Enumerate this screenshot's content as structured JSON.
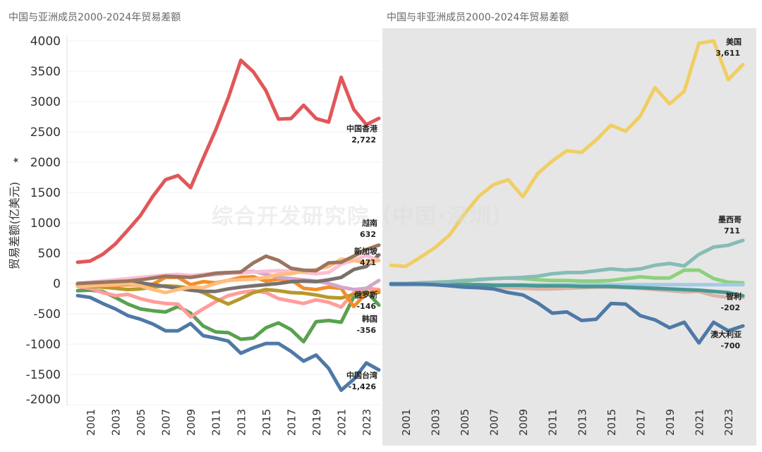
{
  "chart_data": [
    {
      "type": "line",
      "title": "中国与亚洲成员2000-2024年贸易差额",
      "ylabel": "贸易差额(亿美元)",
      "ylim": [
        -2000,
        4000
      ],
      "yticks": [
        4000,
        3500,
        3000,
        2500,
        2000,
        1500,
        1000,
        500,
        0,
        -500,
        -1000,
        -1500,
        -2000
      ],
      "x": [
        2000,
        2001,
        2002,
        2003,
        2004,
        2005,
        2006,
        2007,
        2008,
        2009,
        2010,
        2011,
        2012,
        2013,
        2014,
        2015,
        2016,
        2017,
        2018,
        2019,
        2020,
        2021,
        2022,
        2023,
        2024
      ],
      "xticks": [
        2001,
        2003,
        2005,
        2007,
        2009,
        2011,
        2013,
        2015,
        2017,
        2019,
        2021,
        2023
      ],
      "grid": true,
      "series": [
        {
          "name": "中国香港",
          "end_label": "2,722",
          "color": "#e15759",
          "values": [
            350,
            370,
            480,
            650,
            880,
            1120,
            1440,
            1710,
            1780,
            1580,
            2060,
            2530,
            3060,
            3680,
            3490,
            3180,
            2710,
            2720,
            2940,
            2720,
            2660,
            3400,
            2870,
            2620,
            2722
          ]
        },
        {
          "name": "中国台湾",
          "end_label": "-1,426",
          "color": "#4e79a7",
          "values": [
            -200,
            -230,
            -330,
            -420,
            -530,
            -590,
            -670,
            -780,
            -780,
            -660,
            -860,
            -900,
            -950,
            -1150,
            -1060,
            -990,
            -990,
            -1120,
            -1280,
            -1180,
            -1400,
            -1760,
            -1580,
            -1310,
            -1426
          ]
        },
        {
          "name": "韩国",
          "end_label": "-356",
          "color": "#59a14f",
          "values": [
            -120,
            -110,
            -130,
            -230,
            -340,
            -420,
            -450,
            -470,
            -380,
            -490,
            -700,
            -800,
            -810,
            -920,
            -900,
            -730,
            -650,
            -760,
            -960,
            -630,
            -610,
            -640,
            -220,
            -130,
            -356
          ]
        },
        {
          "name": "",
          "color": "#ff9d9a",
          "values": [
            -50,
            -80,
            -150,
            -200,
            -180,
            -250,
            -300,
            -330,
            -340,
            -550,
            -420,
            -300,
            -200,
            -150,
            -120,
            -150,
            -250,
            -290,
            -330,
            -270,
            -310,
            -390,
            -150,
            -80,
            -100
          ]
        },
        {
          "name": "俄罗斯",
          "end_label": "-146",
          "color": "#b6992d",
          "values": [
            -30,
            -50,
            -60,
            -80,
            -100,
            -90,
            -60,
            -40,
            -50,
            -80,
            -150,
            -250,
            -340,
            -250,
            -150,
            -100,
            -120,
            -150,
            -160,
            -190,
            -230,
            -240,
            -180,
            -170,
            -146
          ]
        },
        {
          "name": "",
          "color": "#f28e2b",
          "values": [
            0,
            -10,
            -20,
            -30,
            -20,
            -30,
            -10,
            100,
            100,
            -20,
            30,
            10,
            50,
            100,
            110,
            40,
            70,
            60,
            -80,
            -100,
            -60,
            -80,
            -380,
            -160,
            -130
          ]
        },
        {
          "name": "",
          "color": "#d4a6c8",
          "values": [
            0,
            10,
            20,
            30,
            50,
            80,
            100,
            120,
            130,
            100,
            130,
            150,
            170,
            180,
            200,
            150,
            100,
            80,
            60,
            40,
            0,
            -60,
            -100,
            -80,
            50
          ]
        },
        {
          "name": "新加坡",
          "end_label": "471",
          "color": "#79706e",
          "values": [
            -20,
            -10,
            0,
            10,
            20,
            10,
            -20,
            -50,
            -80,
            -110,
            -130,
            -130,
            -90,
            -60,
            -40,
            -20,
            0,
            30,
            40,
            30,
            60,
            100,
            230,
            280,
            471
          ]
        },
        {
          "name": "",
          "color": "#fabfd2",
          "values": [
            0,
            20,
            40,
            60,
            80,
            100,
            120,
            140,
            150,
            130,
            150,
            170,
            180,
            170,
            190,
            200,
            210,
            200,
            180,
            160,
            180,
            320,
            380,
            460,
            380
          ]
        },
        {
          "name": "",
          "color": "#ffbe7d",
          "values": [
            -50,
            -40,
            -30,
            -20,
            0,
            -40,
            -100,
            -150,
            -100,
            -60,
            -70,
            0,
            50,
            60,
            70,
            100,
            150,
            160,
            200,
            230,
            280,
            400,
            380,
            340,
            380
          ]
        },
        {
          "name": "越南",
          "end_label": "632",
          "color": "#9c755f",
          "values": [
            0,
            10,
            20,
            30,
            40,
            60,
            90,
            120,
            110,
            100,
            130,
            170,
            180,
            190,
            340,
            450,
            380,
            250,
            220,
            210,
            340,
            350,
            450,
            560,
            632
          ]
        }
      ]
    },
    {
      "type": "line",
      "title": "中国与非亚洲成员2000-2024年贸易差额",
      "ylim": [
        -2000,
        4000
      ],
      "x": [
        2000,
        2001,
        2002,
        2003,
        2004,
        2005,
        2006,
        2007,
        2008,
        2009,
        2010,
        2011,
        2012,
        2013,
        2014,
        2015,
        2016,
        2017,
        2018,
        2019,
        2020,
        2021,
        2022,
        2023,
        2024
      ],
      "xticks": [
        2001,
        2003,
        2005,
        2007,
        2009,
        2011,
        2013,
        2015,
        2017,
        2019,
        2021,
        2023
      ],
      "grid": false,
      "series": [
        {
          "name": "美国",
          "end_label": "3,611",
          "color": "#f1ce63",
          "values": [
            300,
            280,
            430,
            590,
            800,
            1140,
            1440,
            1630,
            1710,
            1430,
            1810,
            2020,
            2190,
            2160,
            2370,
            2610,
            2510,
            2760,
            3230,
            2960,
            3170,
            3960,
            4000,
            3360,
            3611
          ]
        },
        {
          "name": "",
          "color": "#d7b5a6",
          "values": [
            -20,
            -20,
            -20,
            -20,
            -30,
            -40,
            -50,
            -60,
            -70,
            -80,
            -90,
            -90,
            -80,
            -70,
            -60,
            -60,
            -70,
            -80,
            -100,
            -120,
            -140,
            -130,
            -200,
            -230,
            -230
          ]
        },
        {
          "name": "",
          "color": "#8cd17d",
          "values": [
            0,
            0,
            0,
            10,
            20,
            30,
            70,
            80,
            90,
            80,
            60,
            50,
            50,
            40,
            40,
            50,
            80,
            110,
            90,
            90,
            220,
            220,
            80,
            20,
            10
          ]
        },
        {
          "name": "",
          "color": "#a0cbe8",
          "values": [
            -20,
            -20,
            -20,
            -20,
            -20,
            -20,
            -20,
            -20,
            -20,
            -20,
            -20,
            -20,
            -20,
            -20,
            -20,
            -20,
            -20,
            -20,
            -20,
            -20,
            -20,
            -20,
            -20,
            -20,
            -20
          ]
        },
        {
          "name": "智利",
          "end_label": "-202",
          "color": "#499894",
          "values": [
            -10,
            -10,
            -10,
            -10,
            -20,
            -20,
            -20,
            -30,
            -30,
            -30,
            -40,
            -40,
            -40,
            -50,
            -50,
            -50,
            -60,
            -70,
            -80,
            -90,
            -100,
            -110,
            -130,
            -150,
            -202
          ]
        },
        {
          "name": "墨西哥",
          "end_label": "711",
          "color": "#86bcb6",
          "values": [
            0,
            0,
            10,
            20,
            30,
            50,
            60,
            80,
            90,
            100,
            120,
            160,
            180,
            180,
            210,
            240,
            220,
            240,
            300,
            330,
            290,
            480,
            600,
            630,
            711
          ]
        },
        {
          "name": "澳大利亚",
          "end_label": "-700",
          "color": "#4e79a7",
          "values": [
            -10,
            -10,
            -10,
            -20,
            -40,
            -60,
            -70,
            -90,
            -150,
            -190,
            -320,
            -490,
            -470,
            -610,
            -590,
            -330,
            -340,
            -530,
            -600,
            -730,
            -640,
            -980,
            -640,
            -780,
            -700
          ]
        }
      ]
    }
  ],
  "watermark": "综合开发研究院（中国·深圳）"
}
